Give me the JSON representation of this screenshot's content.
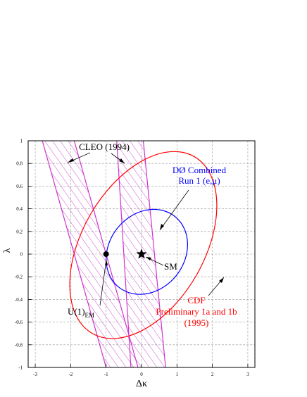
{
  "chart_data": {
    "type": "contour",
    "xlabel": "Δκ",
    "ylabel": "λ",
    "xlim": [
      -3.2,
      3.2
    ],
    "ylim": [
      -1,
      1
    ],
    "grid": true,
    "x_ticks": [
      "-3",
      "-2",
      "-1",
      "0",
      "1",
      "2",
      "3"
    ],
    "y_ticks": [
      "-1",
      "-0.8",
      "-0.6",
      "-0.4",
      "-0.2",
      "0",
      "0.2",
      "0.4",
      "0.6",
      "0.8",
      "1"
    ],
    "regions": [
      {
        "label": "CLEO (1994)",
        "color": "#cc33cc",
        "shape": "hatched-band",
        "bands": [
          {
            "x_at_top": [
              -2.8,
              -1.9
            ],
            "x_at_bottom": [
              -1.0,
              -0.1
            ]
          },
          {
            "x_at_top": [
              -0.7,
              0.05
            ],
            "x_at_bottom": [
              -0.3,
              0.68
            ]
          }
        ]
      },
      {
        "label_lines": [
          "DØ Combined",
          "Run 1 (e,μ)"
        ],
        "color": "#0000ff",
        "shape": "ellipse",
        "center": [
          0.15,
          0.02
        ],
        "x_range": [
          -1.1,
          1.2
        ],
        "y_range": [
          -0.39,
          0.36
        ],
        "tilt_deg": -38
      },
      {
        "label_lines": [
          "CDF",
          "Preliminary 1a and 1b",
          "(1995)"
        ],
        "color": "#ff0000",
        "shape": "ellipse",
        "center": [
          0.05,
          0.08
        ],
        "x_range": [
          -1.9,
          2.25
        ],
        "y_range": [
          -0.8,
          0.85
        ],
        "tilt_deg": -30
      }
    ],
    "points": [
      {
        "label": "SM",
        "x": 0,
        "y": 0,
        "marker": "star"
      },
      {
        "label": "U(1)",
        "label_sub": "EM",
        "x": -1,
        "y": 0,
        "marker": "circle"
      }
    ]
  }
}
